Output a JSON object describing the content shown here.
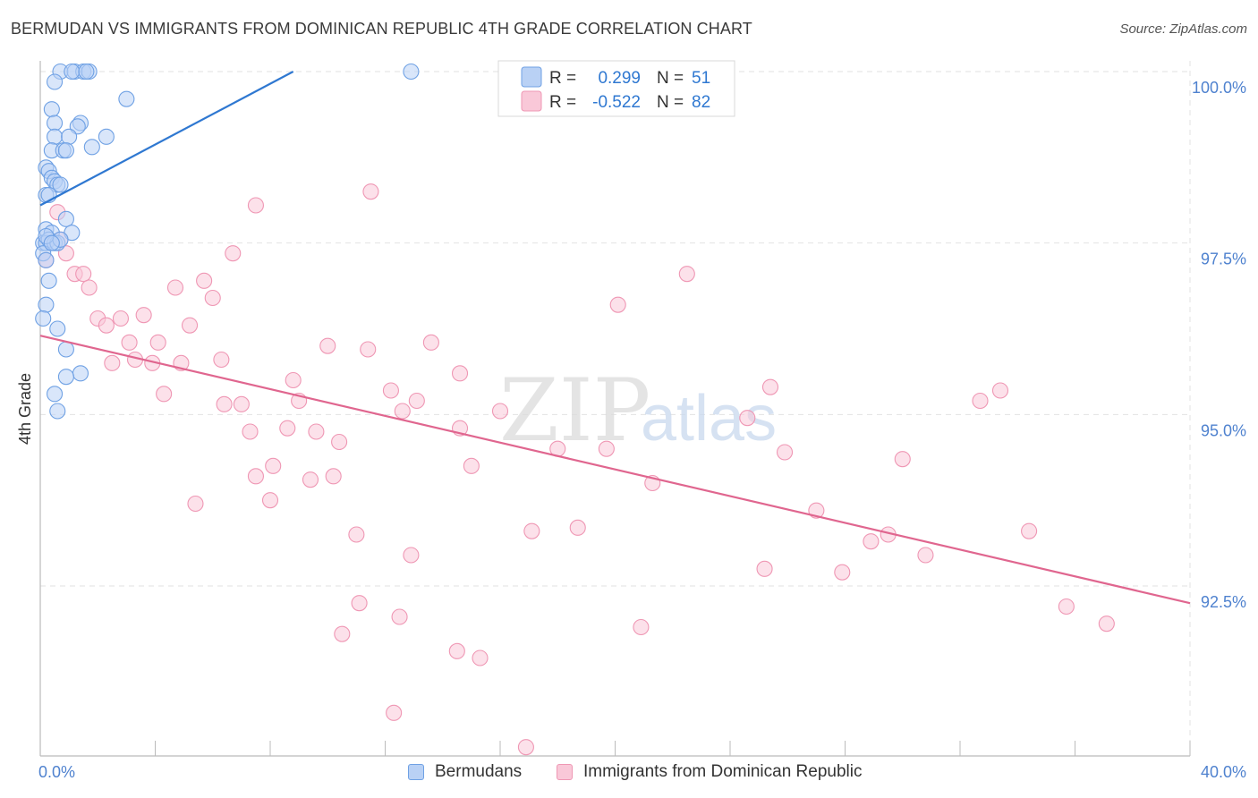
{
  "title": "BERMUDAN VS IMMIGRANTS FROM DOMINICAN REPUBLIC 4TH GRADE CORRELATION CHART",
  "source": "Source: ZipAtlas.com",
  "chart_data": {
    "type": "scatter",
    "ylabel": "4th Grade",
    "xlim": [
      0.0,
      40.0
    ],
    "ylim": [
      90.0,
      100.0
    ],
    "x_tick_labels": [
      "0.0%",
      "40.0%"
    ],
    "y_ticks": [
      100.0,
      97.5,
      95.0,
      92.5
    ],
    "y_tick_labels": [
      "100.0%",
      "97.5%",
      "95.0%",
      "92.5%"
    ],
    "grid": true,
    "legend_position": "top-center",
    "watermark": "ZIPatlas",
    "series": [
      {
        "name": "Bermudans",
        "color": "#6fa1e4",
        "fill": "#b9d1f5",
        "line_color": "#2f78d1",
        "stats": {
          "r_label": "R =",
          "r": "0.299",
          "n_label": "N =",
          "n": "51"
        },
        "trend": {
          "x": [
            0.0,
            8.8
          ],
          "y": [
            98.05,
            100.0
          ]
        },
        "points": [
          [
            0.7,
            100.0
          ],
          [
            1.2,
            100.0
          ],
          [
            1.5,
            100.0
          ],
          [
            1.7,
            100.0
          ],
          [
            12.9,
            100.0
          ],
          [
            1.1,
            100.0
          ],
          [
            1.6,
            100.0
          ],
          [
            0.5,
            99.85
          ],
          [
            3.0,
            99.6
          ],
          [
            0.4,
            99.45
          ],
          [
            0.5,
            99.25
          ],
          [
            1.4,
            99.25
          ],
          [
            1.3,
            99.2
          ],
          [
            0.5,
            99.05
          ],
          [
            1.0,
            99.05
          ],
          [
            2.3,
            99.05
          ],
          [
            0.4,
            98.85
          ],
          [
            0.8,
            98.85
          ],
          [
            0.9,
            98.85
          ],
          [
            1.8,
            98.9
          ],
          [
            0.2,
            98.6
          ],
          [
            0.3,
            98.55
          ],
          [
            0.4,
            98.45
          ],
          [
            0.5,
            98.4
          ],
          [
            0.6,
            98.35
          ],
          [
            0.7,
            98.35
          ],
          [
            0.2,
            98.2
          ],
          [
            0.3,
            98.2
          ],
          [
            0.9,
            97.85
          ],
          [
            0.2,
            97.7
          ],
          [
            0.4,
            97.65
          ],
          [
            1.1,
            97.65
          ],
          [
            0.1,
            97.5
          ],
          [
            0.2,
            97.5
          ],
          [
            0.3,
            97.55
          ],
          [
            0.5,
            97.5
          ],
          [
            0.6,
            97.5
          ],
          [
            0.7,
            97.55
          ],
          [
            0.1,
            97.35
          ],
          [
            0.2,
            97.25
          ],
          [
            0.3,
            96.95
          ],
          [
            0.2,
            96.6
          ],
          [
            0.1,
            96.4
          ],
          [
            0.6,
            96.25
          ],
          [
            0.9,
            95.95
          ],
          [
            1.4,
            95.6
          ],
          [
            0.9,
            95.55
          ],
          [
            0.5,
            95.3
          ],
          [
            0.6,
            95.05
          ],
          [
            0.2,
            97.6
          ],
          [
            0.4,
            97.5
          ]
        ]
      },
      {
        "name": "Immigrants from Dominican Republic",
        "color": "#ef97b4",
        "fill": "#f9c8d8",
        "line_color": "#e0668f",
        "stats": {
          "r_label": "R =",
          "r": "-0.522",
          "n_label": "N =",
          "n": "82"
        },
        "trend": {
          "x": [
            0.0,
            40.0
          ],
          "y": [
            96.15,
            92.25
          ]
        },
        "points": [
          [
            0.6,
            97.95
          ],
          [
            0.2,
            97.25
          ],
          [
            0.7,
            97.55
          ],
          [
            0.9,
            97.35
          ],
          [
            1.2,
            97.05
          ],
          [
            1.5,
            97.05
          ],
          [
            1.7,
            96.85
          ],
          [
            7.5,
            98.05
          ],
          [
            11.5,
            98.25
          ],
          [
            6.7,
            97.35
          ],
          [
            5.7,
            96.95
          ],
          [
            4.7,
            96.85
          ],
          [
            6.0,
            96.7
          ],
          [
            2.0,
            96.4
          ],
          [
            2.3,
            96.3
          ],
          [
            2.8,
            96.4
          ],
          [
            3.6,
            96.45
          ],
          [
            5.2,
            96.3
          ],
          [
            3.1,
            96.05
          ],
          [
            4.1,
            96.05
          ],
          [
            10.0,
            96.0
          ],
          [
            11.4,
            95.95
          ],
          [
            13.6,
            96.05
          ],
          [
            2.5,
            95.75
          ],
          [
            3.3,
            95.8
          ],
          [
            3.9,
            95.75
          ],
          [
            4.9,
            95.75
          ],
          [
            6.3,
            95.8
          ],
          [
            4.3,
            95.3
          ],
          [
            8.8,
            95.5
          ],
          [
            12.2,
            95.35
          ],
          [
            14.6,
            95.6
          ],
          [
            6.4,
            95.15
          ],
          [
            7.0,
            95.15
          ],
          [
            9.0,
            95.2
          ],
          [
            12.6,
            95.05
          ],
          [
            13.1,
            95.2
          ],
          [
            16.0,
            95.05
          ],
          [
            7.3,
            94.75
          ],
          [
            8.6,
            94.8
          ],
          [
            9.6,
            94.75
          ],
          [
            10.4,
            94.6
          ],
          [
            14.6,
            94.8
          ],
          [
            18.0,
            94.5
          ],
          [
            19.7,
            94.5
          ],
          [
            20.1,
            96.6
          ],
          [
            22.5,
            97.05
          ],
          [
            24.6,
            94.95
          ],
          [
            25.4,
            95.4
          ],
          [
            25.9,
            94.45
          ],
          [
            8.1,
            94.25
          ],
          [
            7.5,
            94.1
          ],
          [
            9.4,
            94.05
          ],
          [
            10.2,
            94.1
          ],
          [
            15.0,
            94.25
          ],
          [
            21.3,
            94.0
          ],
          [
            5.4,
            93.7
          ],
          [
            8.0,
            93.75
          ],
          [
            11.0,
            93.25
          ],
          [
            17.1,
            93.3
          ],
          [
            18.7,
            93.35
          ],
          [
            27.0,
            93.6
          ],
          [
            28.9,
            93.15
          ],
          [
            29.5,
            93.25
          ],
          [
            30.8,
            92.95
          ],
          [
            34.4,
            93.3
          ],
          [
            32.7,
            95.2
          ],
          [
            33.4,
            95.35
          ],
          [
            12.9,
            92.95
          ],
          [
            25.2,
            92.75
          ],
          [
            27.9,
            92.7
          ],
          [
            11.1,
            92.25
          ],
          [
            12.5,
            92.05
          ],
          [
            10.5,
            91.8
          ],
          [
            14.5,
            91.55
          ],
          [
            15.3,
            91.45
          ],
          [
            20.9,
            91.9
          ],
          [
            35.7,
            92.2
          ],
          [
            37.1,
            91.95
          ],
          [
            30.0,
            94.35
          ],
          [
            12.3,
            90.65
          ],
          [
            16.9,
            90.15
          ]
        ]
      }
    ]
  }
}
